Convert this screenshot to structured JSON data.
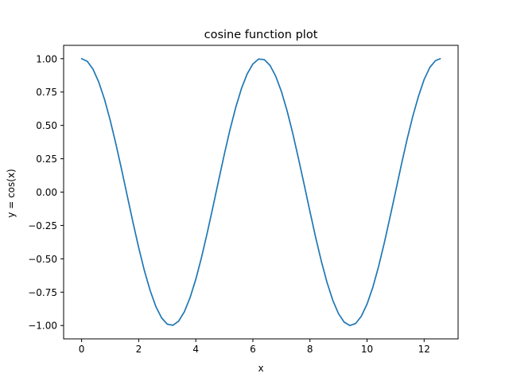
{
  "chart_data": {
    "type": "line",
    "title": "cosine function plot",
    "xlabel": "x",
    "ylabel": "y = cos(x)",
    "xlim": [
      -0.63,
      13.19
    ],
    "ylim": [
      -1.1,
      1.1
    ],
    "x_ticks": [
      0,
      2,
      4,
      6,
      8,
      10,
      12
    ],
    "x_tick_labels": [
      "0",
      "2",
      "4",
      "6",
      "8",
      "10",
      "12"
    ],
    "y_ticks": [
      -1.0,
      -0.75,
      -0.5,
      -0.25,
      0.0,
      0.25,
      0.5,
      0.75,
      1.0
    ],
    "y_tick_labels": [
      "−1.00",
      "−0.75",
      "−0.50",
      "−0.25",
      "0.00",
      "0.25",
      "0.50",
      "0.75",
      "1.00"
    ],
    "grid": false,
    "legend": "none",
    "series": [
      {
        "color": "#1f77b4",
        "x": [
          0,
          0.2,
          0.4,
          0.6,
          0.8,
          1.0,
          1.2,
          1.4,
          1.6,
          1.8,
          2.0,
          2.2,
          2.4,
          2.6,
          2.8,
          3.0,
          3.2,
          3.4,
          3.6,
          3.8,
          4.0,
          4.2,
          4.4,
          4.6,
          4.8,
          5.0,
          5.2,
          5.4,
          5.6,
          5.8,
          6.0,
          6.2,
          6.4,
          6.6,
          6.8,
          7.0,
          7.2,
          7.4,
          7.6,
          7.8,
          8.0,
          8.2,
          8.4,
          8.6,
          8.8,
          9.0,
          9.2,
          9.4,
          9.6,
          9.8,
          10.0,
          10.2,
          10.4,
          10.6,
          10.8,
          11.0,
          11.2,
          11.4,
          11.6,
          11.8,
          12.0,
          12.2,
          12.4,
          12.566
        ],
        "y": [
          1.0,
          0.98,
          0.921,
          0.825,
          0.697,
          0.54,
          0.362,
          0.17,
          -0.029,
          -0.227,
          -0.416,
          -0.589,
          -0.737,
          -0.857,
          -0.942,
          -0.99,
          -0.998,
          -0.967,
          -0.897,
          -0.791,
          -0.654,
          -0.49,
          -0.307,
          -0.112,
          0.087,
          0.284,
          0.469,
          0.635,
          0.776,
          0.886,
          0.96,
          0.997,
          0.993,
          0.95,
          0.869,
          0.754,
          0.608,
          0.438,
          0.249,
          0.054,
          -0.146,
          -0.34,
          -0.519,
          -0.678,
          -0.811,
          -0.911,
          -0.975,
          -0.9999,
          -0.985,
          -0.93,
          -0.839,
          -0.715,
          -0.561,
          -0.385,
          -0.193,
          0.004,
          0.203,
          0.393,
          0.566,
          0.717,
          0.844,
          0.935,
          0.986,
          1.0
        ]
      }
    ]
  }
}
